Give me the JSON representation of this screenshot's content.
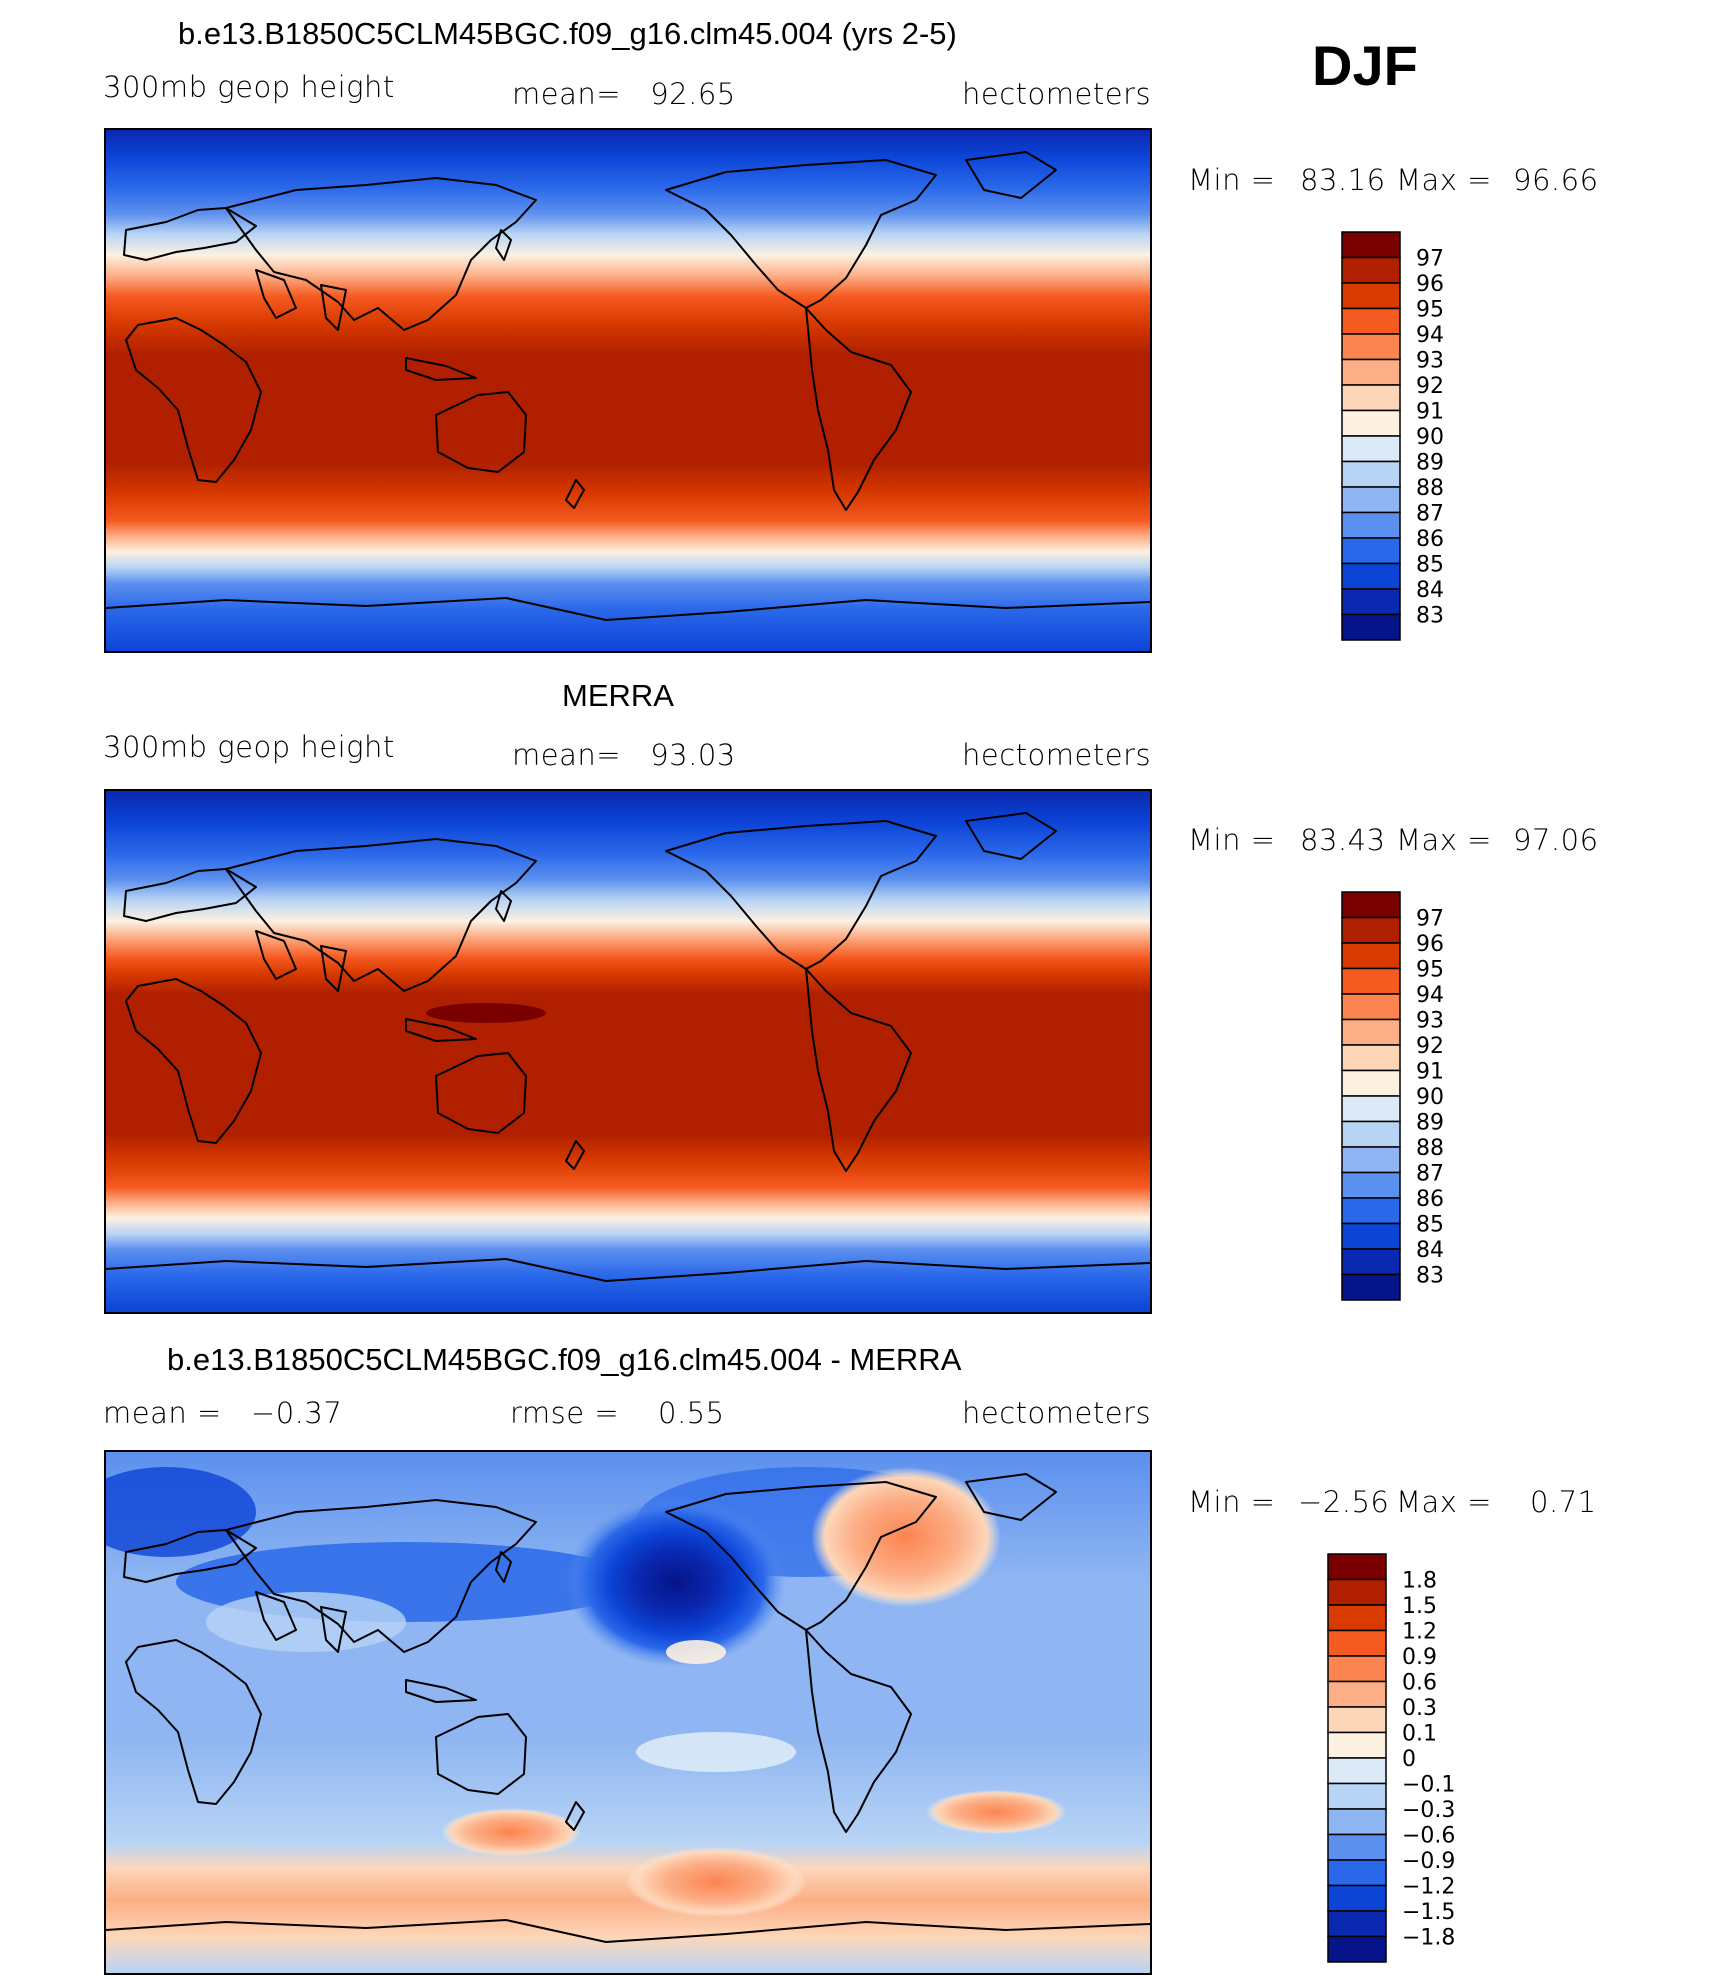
{
  "season": "DJF",
  "chart_data": [
    {
      "type": "heatmap",
      "title": "b.e13.B1850C5CLM45BGC.f09_g16.clm45.004 (yrs 2-5)",
      "left_label": "300mb geop height",
      "center_label": "mean=   92.65",
      "right_label": "hectometers",
      "min_label": "Min =",
      "min_value": "83.16",
      "max_label": "Max =",
      "max_value": "96.66",
      "mean": 92.65,
      "min": 83.16,
      "max": 96.66,
      "units": "hectometers",
      "colorbar_levels": [
        "97",
        "96",
        "95",
        "94",
        "93",
        "92",
        "91",
        "90",
        "89",
        "88",
        "87",
        "86",
        "85",
        "84",
        "83"
      ],
      "colorbar_colors": [
        "#7a0000",
        "#b02000",
        "#d83a00",
        "#f55a20",
        "#fb8450",
        "#fcae86",
        "#fdd6b8",
        "#fdf1e2",
        "#dceaf8",
        "#b8d4f5",
        "#8fb6f2",
        "#5c90ee",
        "#2a68ea",
        "#0c44d6",
        "#0a28b0",
        "#06148a"
      ]
    },
    {
      "type": "heatmap",
      "title": "MERRA",
      "left_label": "300mb geop height",
      "center_label": "mean=   93.03",
      "right_label": "hectometers",
      "min_label": "Min =",
      "min_value": "83.43",
      "max_label": "Max =",
      "max_value": "97.06",
      "mean": 93.03,
      "min": 83.43,
      "max": 97.06,
      "units": "hectometers",
      "colorbar_levels": [
        "97",
        "96",
        "95",
        "94",
        "93",
        "92",
        "91",
        "90",
        "89",
        "88",
        "87",
        "86",
        "85",
        "84",
        "83"
      ],
      "colorbar_colors": [
        "#7a0000",
        "#b02000",
        "#d83a00",
        "#f55a20",
        "#fb8450",
        "#fcae86",
        "#fdd6b8",
        "#fdf1e2",
        "#dceaf8",
        "#b8d4f5",
        "#8fb6f2",
        "#5c90ee",
        "#2a68ea",
        "#0c44d6",
        "#0a28b0",
        "#06148a"
      ]
    },
    {
      "type": "heatmap",
      "title": "b.e13.B1850C5CLM45BGC.f09_g16.clm45.004 - MERRA",
      "left_label": "mean =   −0.37",
      "center_label": "rmse =    0.55",
      "right_label": "hectometers",
      "min_label": "Min =",
      "min_value": "−2.56",
      "max_label": "Max =",
      "max_value": "0.71",
      "mean": -0.37,
      "rmse": 0.55,
      "min": -2.56,
      "max": 0.71,
      "units": "hectometers",
      "colorbar_levels": [
        "1.8",
        "1.5",
        "1.2",
        "0.9",
        "0.6",
        "0.3",
        "0.1",
        "0",
        "−0.1",
        "−0.3",
        "−0.6",
        "−0.9",
        "−1.2",
        "−1.5",
        "−1.8"
      ],
      "colorbar_colors": [
        "#7a0000",
        "#b02000",
        "#d83a00",
        "#f55a20",
        "#fb8450",
        "#fcae86",
        "#fdd6b8",
        "#fdf1e2",
        "#dceaf8",
        "#b8d4f5",
        "#8fb6f2",
        "#5c90ee",
        "#2a68ea",
        "#0c44d6",
        "#0a28b0",
        "#06148a"
      ]
    }
  ]
}
